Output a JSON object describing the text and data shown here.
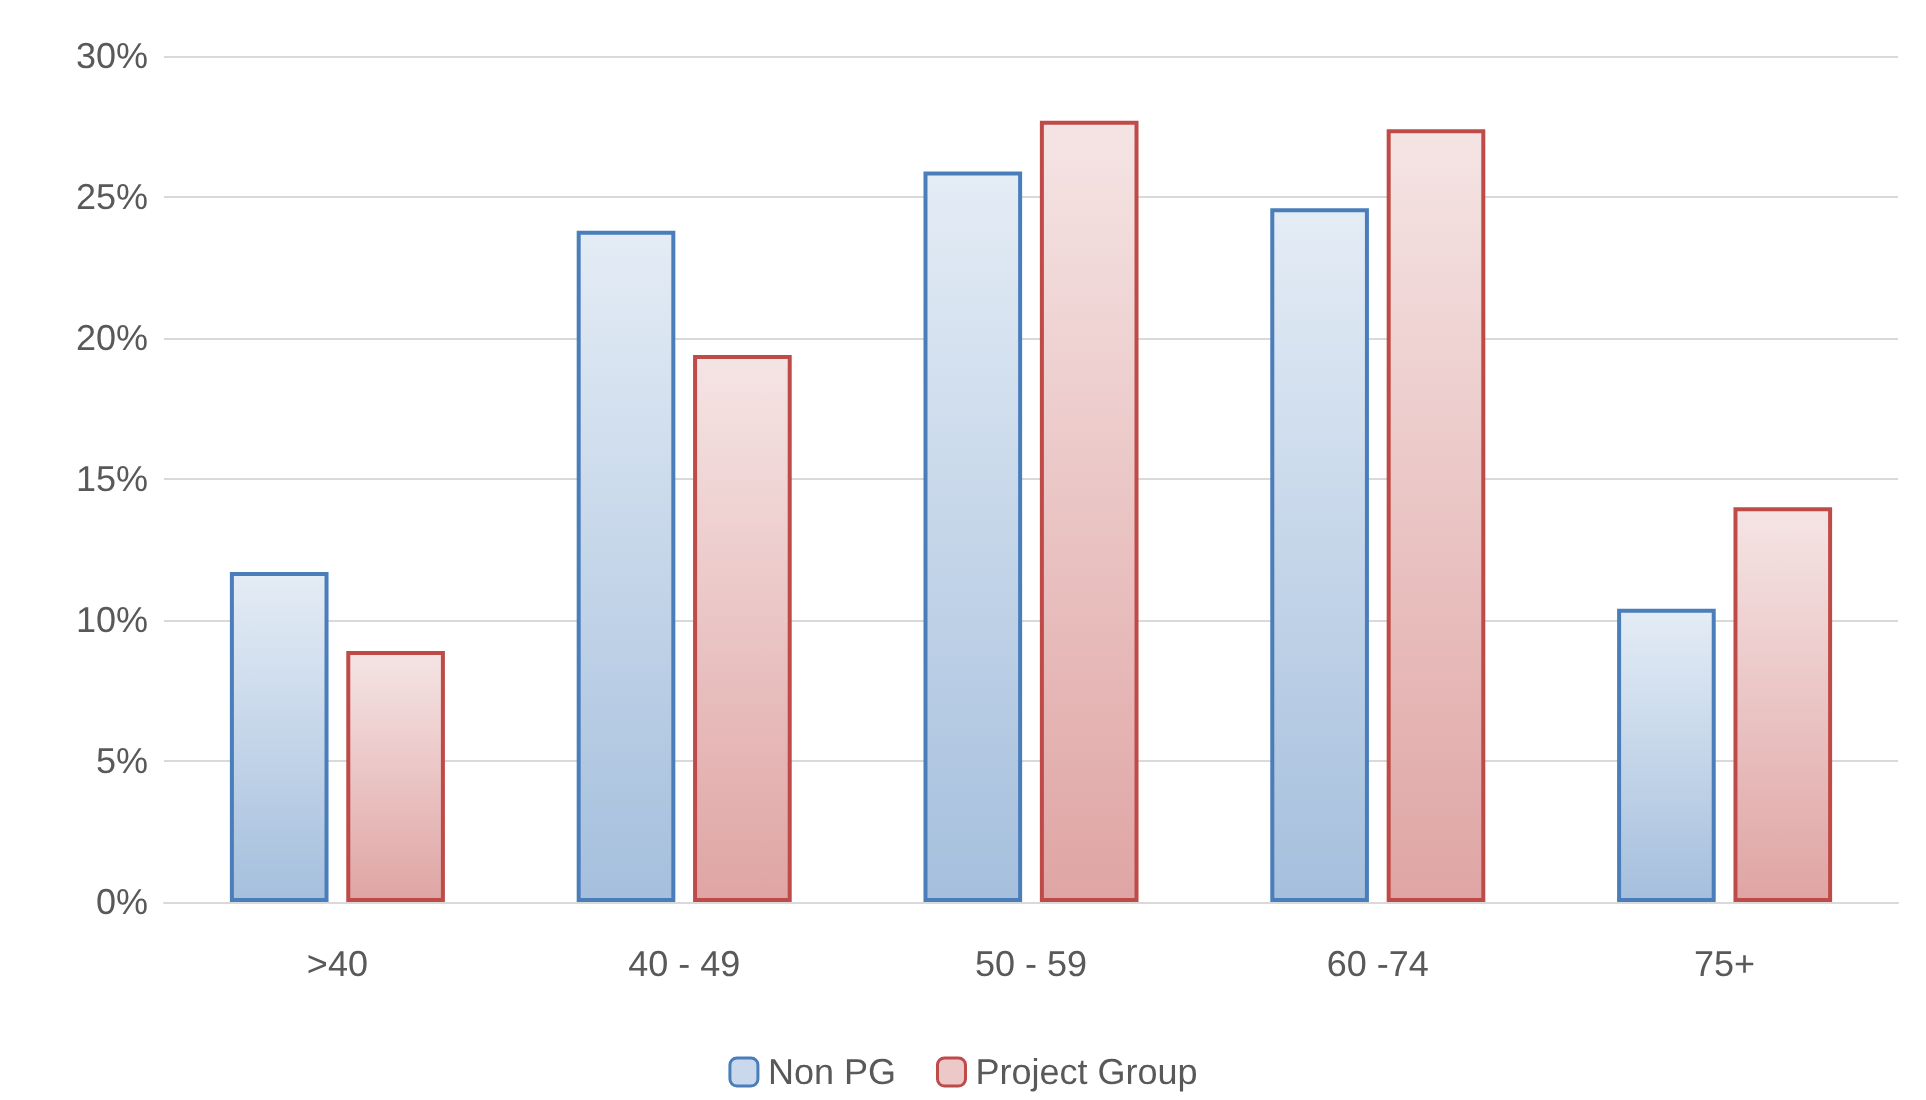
{
  "chart_data": {
    "type": "bar",
    "categories": [
      ">40",
      "40 - 49",
      "50 - 59",
      "60 -74",
      "75+"
    ],
    "series": [
      {
        "name": "Non PG",
        "color": "#4a7ebb",
        "values": [
          11.7,
          23.8,
          25.9,
          24.6,
          10.4
        ]
      },
      {
        "name": "Project Group",
        "color": "#be4b48",
        "values": [
          8.9,
          19.4,
          27.7,
          27.4,
          14.0
        ]
      }
    ],
    "ylim": [
      0,
      30
    ],
    "yticks": [
      {
        "value": 0,
        "label": "0%"
      },
      {
        "value": 5,
        "label": "5%"
      },
      {
        "value": 10,
        "label": "10%"
      },
      {
        "value": 15,
        "label": "15%"
      },
      {
        "value": 20,
        "label": "20%"
      },
      {
        "value": 25,
        "label": "25%"
      },
      {
        "value": 30,
        "label": "30%"
      }
    ],
    "grid": "y",
    "legend": "bottom"
  }
}
